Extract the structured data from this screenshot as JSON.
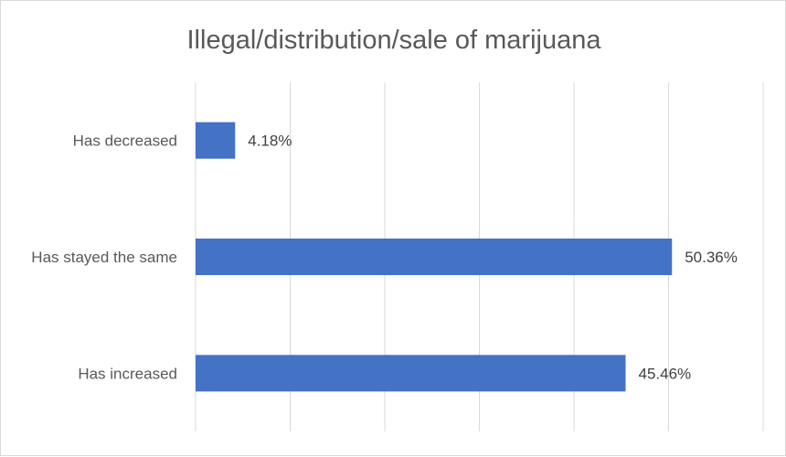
{
  "chart_data": {
    "type": "bar",
    "orientation": "horizontal",
    "title": "Illegal/distribution/sale of marijuana",
    "categories": [
      "Has decreased",
      "Has stayed the same",
      "Has increased"
    ],
    "values": [
      4.18,
      50.36,
      45.46
    ],
    "value_labels": [
      "4.18%",
      "50.36%",
      "45.46%"
    ],
    "xlim": [
      0,
      60
    ],
    "grid": true,
    "legend": "none",
    "bar_color": "#4472C4",
    "grid_color": "#d9d9d9"
  }
}
